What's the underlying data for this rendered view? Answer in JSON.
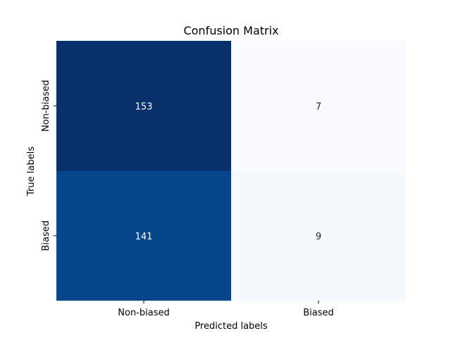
{
  "chart_data": {
    "type": "heatmap",
    "title": "Confusion Matrix",
    "xlabel": "Predicted labels",
    "ylabel": "True labels",
    "x_categories": [
      "Non-biased",
      "Biased"
    ],
    "y_categories": [
      "Non-biased",
      "Biased"
    ],
    "values": [
      [
        153,
        7
      ],
      [
        141,
        9
      ]
    ],
    "colormap": "Blues",
    "color_range": [
      7,
      153
    ],
    "colorbar": false,
    "grid": false
  }
}
